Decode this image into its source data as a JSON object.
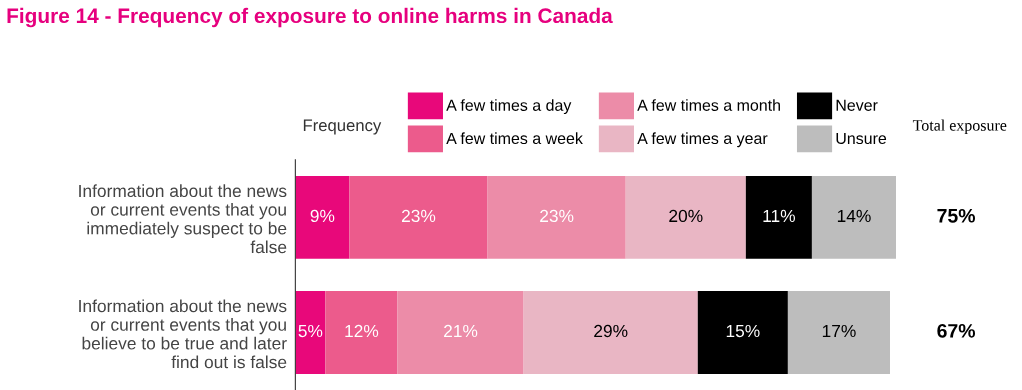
{
  "chart_data": {
    "type": "bar",
    "orientation": "horizontal",
    "stacked": true,
    "title": "Figure 14 - Frequency of exposure to online harms in Canada",
    "legend_title": "Frequency",
    "annotations": [
      "Total exposure",
      "75%",
      "67%"
    ],
    "categories": [
      "Information about the news\nor current events that you\nimmediately suspect to be\nfalse",
      "Information about the news\nor current events that you\nbelieve to be true and later\nfind out is false"
    ],
    "series": [
      {
        "name": "A few times a day",
        "color": "#e8087a",
        "values": [
          9,
          5
        ],
        "value_labels": [
          "9%",
          "5%"
        ]
      },
      {
        "name": "A few times a week",
        "color": "#ec5b8c",
        "values": [
          23,
          12
        ],
        "value_labels": [
          "23%",
          "12%"
        ]
      },
      {
        "name": "A few times a month",
        "color": "#ec8ca8",
        "values": [
          23,
          21
        ],
        "value_labels": [
          "23%",
          "21%"
        ]
      },
      {
        "name": "A few times a year",
        "color": "#e9b6c4",
        "values": [
          20,
          29
        ],
        "value_labels": [
          "20%",
          "29%"
        ]
      },
      {
        "name": "Never",
        "color": "#000000",
        "values": [
          11,
          15
        ],
        "value_labels": [
          "11%",
          "15%"
        ]
      },
      {
        "name": "Unsure",
        "color": "#bdbdbd",
        "values": [
          14,
          17
        ],
        "value_labels": [
          "14%",
          "17%"
        ]
      }
    ],
    "legend": "top",
    "grid": false
  }
}
